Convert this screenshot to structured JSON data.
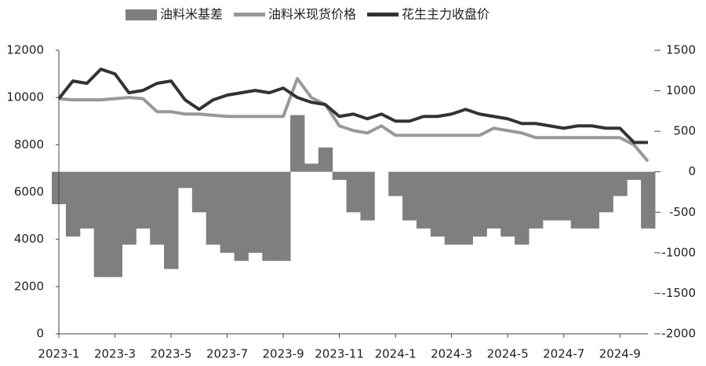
{
  "chart_data": {
    "type": "combo",
    "categories": [
      "2023-1",
      null,
      null,
      null,
      "2023-3",
      null,
      null,
      null,
      "2023-5",
      null,
      null,
      null,
      "2023-7",
      null,
      null,
      null,
      "2023-9",
      null,
      null,
      null,
      "2023-11",
      null,
      null,
      null,
      "2024-1",
      null,
      null,
      null,
      "2024-3",
      null,
      null,
      null,
      "2024-5",
      null,
      null,
      null,
      "2024-7",
      null,
      null,
      null,
      "2024-9",
      null,
      null
    ],
    "series": [
      {
        "name": "油料米基差",
        "type": "bar",
        "axis": "y2",
        "color": "#7f7f7f",
        "values": [
          -400,
          -800,
          -700,
          -1300,
          -1300,
          -900,
          -700,
          -900,
          -1200,
          -200,
          -500,
          -900,
          -1000,
          -1100,
          -1000,
          -1100,
          -1100,
          700,
          100,
          300,
          -100,
          -500,
          -600,
          0,
          -300,
          -600,
          -700,
          -800,
          -900,
          -900,
          -800,
          -700,
          -800,
          -900,
          -700,
          -600,
          -600,
          -700,
          -700,
          -500,
          -300,
          -100,
          -700
        ]
      },
      {
        "name": "油料米现货价格",
        "type": "line",
        "color": "#999999",
        "values": [
          9950,
          9900,
          9900,
          9900,
          9950,
          10000,
          9950,
          9400,
          9400,
          9300,
          9300,
          9250,
          9200,
          9200,
          9200,
          9200,
          9200,
          10800,
          10000,
          9700,
          8800,
          8600,
          8500,
          8800,
          8400,
          8400,
          8400,
          8400,
          8400,
          8400,
          8400,
          8700,
          8600,
          8500,
          8300,
          8300,
          8300,
          8300,
          8300,
          8300,
          8300,
          8000,
          7300
        ]
      },
      {
        "name": "花生主力收盘价",
        "type": "line",
        "color": "#333333",
        "values": [
          9950,
          10700,
          10600,
          11200,
          11000,
          10200,
          10300,
          10600,
          10700,
          9900,
          9500,
          9900,
          10100,
          10200,
          10300,
          10200,
          10400,
          10000,
          9800,
          9700,
          9200,
          9300,
          9100,
          9300,
          9000,
          9000,
          9200,
          9200,
          9300,
          9500,
          9300,
          9200,
          9100,
          8900,
          8900,
          8800,
          8700,
          8800,
          8800,
          8700,
          8700,
          8100,
          8100
        ]
      }
    ],
    "ylim": [
      0,
      12000
    ],
    "yticks": [
      0,
      2000,
      4000,
      6000,
      8000,
      10000,
      12000
    ],
    "y2lim": [
      -2000,
      1500
    ],
    "y2ticks": [
      -2000,
      -1500,
      -1000,
      -500,
      0,
      500,
      1000,
      1500
    ],
    "legend": "top"
  }
}
